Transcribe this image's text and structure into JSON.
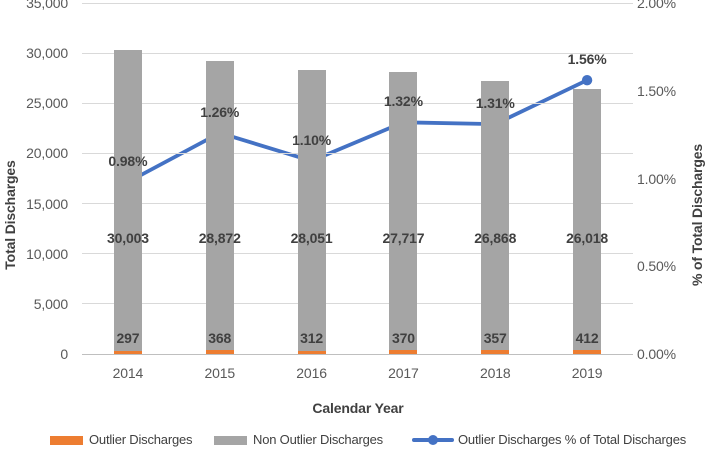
{
  "chart_data": {
    "type": "bar",
    "subtype": "stacked-column-with-line",
    "title": "",
    "categories": [
      "2014",
      "2015",
      "2016",
      "2017",
      "2018",
      "2019"
    ],
    "series": [
      {
        "name": "Outlier Discharges",
        "type": "bar",
        "axis": "left",
        "color": "#ED7D31",
        "values": [
          297,
          368,
          312,
          370,
          357,
          412
        ],
        "labels": [
          "297",
          "368",
          "312",
          "370",
          "357",
          "412"
        ]
      },
      {
        "name": "Non Outlier Discharges",
        "type": "bar",
        "axis": "left",
        "color": "#A5A5A5",
        "values": [
          30003,
          28872,
          28051,
          27717,
          26868,
          26018
        ],
        "labels": [
          "30,003",
          "28,872",
          "28,051",
          "27,717",
          "26,868",
          "26,018"
        ]
      },
      {
        "name": "Outlier Discharges % of Total Discharges",
        "type": "line",
        "axis": "right",
        "color": "#4472C4",
        "values": [
          0.98,
          1.26,
          1.1,
          1.32,
          1.31,
          1.56
        ],
        "labels": [
          "0.98%",
          "1.26%",
          "1.10%",
          "1.32%",
          "1.31%",
          "1.56%"
        ]
      }
    ],
    "left_axis": {
      "title": "Total Discharges",
      "min": 0,
      "max": 35000,
      "step": 5000,
      "tick_labels": [
        "0",
        "5,000",
        "10,000",
        "15,000",
        "20,000",
        "25,000",
        "30,000",
        "35,000"
      ]
    },
    "right_axis": {
      "title": "% of Total Discharges",
      "min": 0,
      "max": 2,
      "step": 0.5,
      "tick_labels": [
        "0.00%",
        "0.50%",
        "1.00%",
        "1.50%",
        "2.00%"
      ]
    },
    "x_axis": {
      "title": "Calendar Year"
    },
    "grid": true,
    "legend_position": "bottom",
    "colors": {
      "gridline": "#D9D9D9",
      "axis_line": "#BFBFBF",
      "tick_text": "#595959",
      "label_text": "#404040"
    }
  }
}
